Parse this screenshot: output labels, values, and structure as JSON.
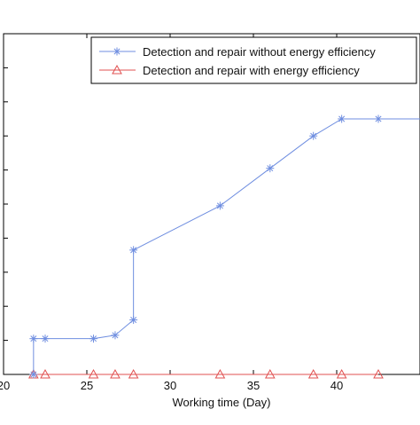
{
  "chart_data": {
    "type": "line",
    "title": "",
    "xlabel": "Working time (Day)",
    "ylabel": "",
    "xlim": [
      20,
      45
    ],
    "ylim": [
      0,
      10
    ],
    "xticks": [
      20,
      25,
      30,
      35,
      40
    ],
    "xtick_labels": [
      "20",
      "25",
      "30",
      "35",
      "40"
    ],
    "yticks": [
      0,
      1,
      2,
      3,
      4,
      5,
      6,
      7,
      8,
      9,
      10
    ],
    "grid": false,
    "legend_position": "top-right",
    "series": [
      {
        "name": "Detection and repair without energy efficiency",
        "color": "#6f8ee0",
        "marker": "asterisk",
        "x": [
          21.8,
          21.8,
          22.5,
          25.4,
          26.7,
          27.8,
          27.8,
          33.0,
          36.0,
          38.6,
          40.3,
          42.5,
          45.0
        ],
        "y": [
          0.0,
          1.05,
          1.05,
          1.05,
          1.15,
          1.6,
          3.65,
          4.95,
          6.05,
          7.0,
          7.5,
          7.5,
          7.5
        ]
      },
      {
        "name": "Detection and repair with energy efficiency",
        "color": "#e05050",
        "marker": "triangle",
        "x": [
          21.8,
          22.5,
          25.4,
          26.7,
          27.8,
          33.0,
          36.0,
          38.6,
          40.3,
          42.5
        ],
        "y": [
          0,
          0,
          0,
          0,
          0,
          0,
          0,
          0,
          0,
          0
        ]
      }
    ]
  }
}
